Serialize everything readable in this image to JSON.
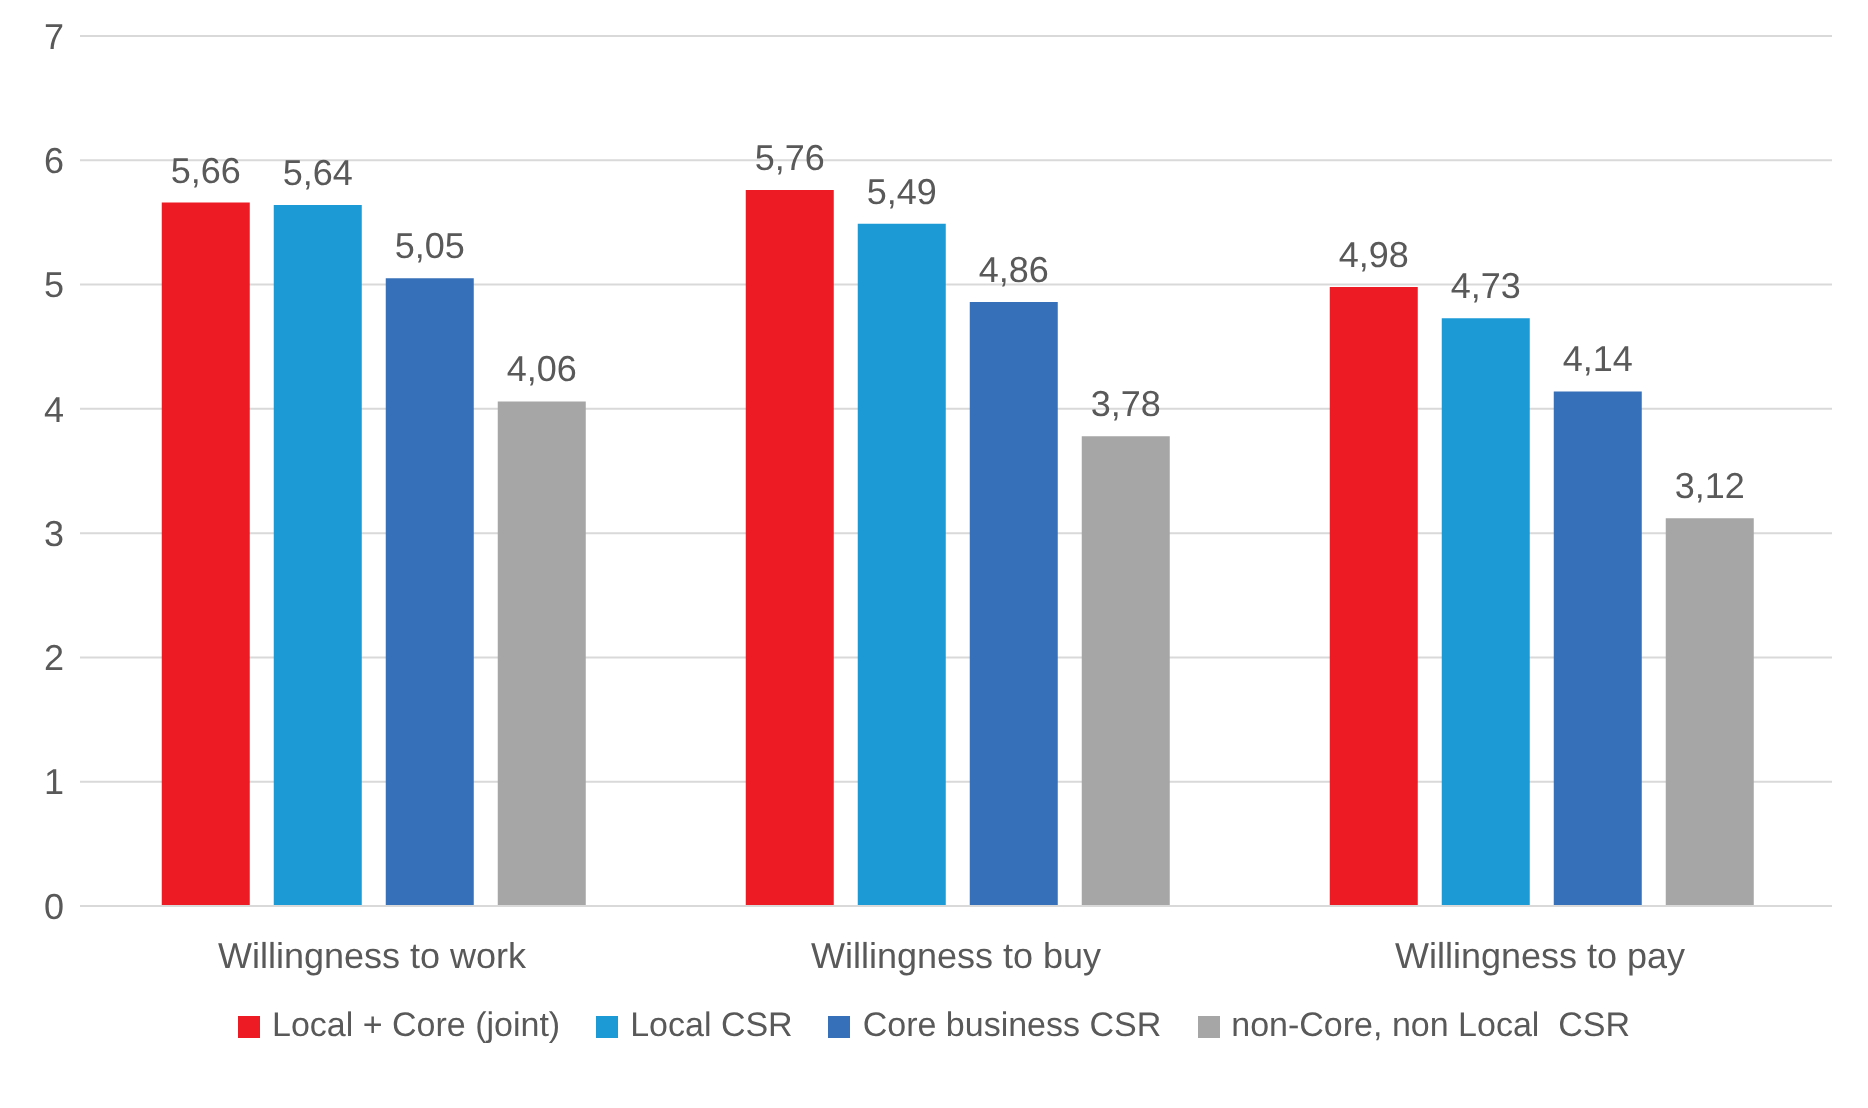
{
  "chart_data": {
    "type": "bar",
    "categories": [
      "Willingness to work",
      "Willingness to buy",
      "Willingness to pay"
    ],
    "series": [
      {
        "name": "Local + Core (joint)",
        "color": "#ed1c24",
        "values": [
          5.66,
          5.76,
          4.98
        ],
        "value_labels": [
          "5,66",
          "5,76",
          "4,98"
        ]
      },
      {
        "name": "Local CSR",
        "color": "#1b9ad6",
        "values": [
          5.64,
          5.49,
          4.73
        ],
        "value_labels": [
          "5,64",
          "5,49",
          "4,73"
        ]
      },
      {
        "name": "Core business CSR",
        "color": "#3670b8",
        "values": [
          5.05,
          4.86,
          4.14
        ],
        "value_labels": [
          "5,05",
          "4,86",
          "4,14"
        ]
      },
      {
        "name": "non-Core, non Local  CSR",
        "color": "#a6a6a6",
        "values": [
          4.06,
          3.78,
          3.12
        ],
        "value_labels": [
          "4,06",
          "3,78",
          "3,12"
        ]
      }
    ],
    "ylim": [
      0,
      7
    ],
    "yticks": [
      0,
      1,
      2,
      3,
      4,
      5,
      6,
      7
    ],
    "grid": "y",
    "legend": "bottom"
  }
}
